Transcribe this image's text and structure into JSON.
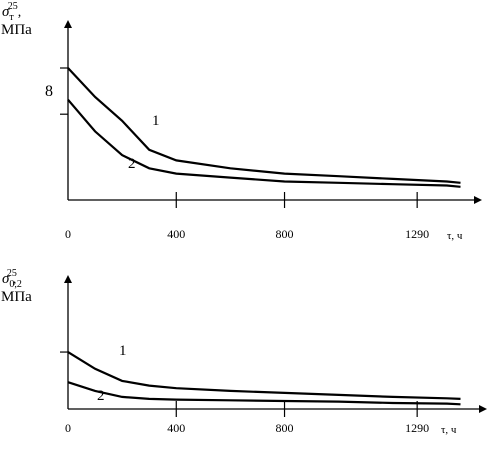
{
  "chart_data": [
    {
      "type": "line",
      "ylabel_symbol": "σ",
      "ylabel_sub": "т",
      "ylabel_sup": "25",
      "ylabel_sep": ",",
      "ylabel_unit": "МПа",
      "xlabel": "τ, ч",
      "xticks": [
        0,
        400,
        800,
        1290
      ],
      "xlim": [
        0,
        1500
      ],
      "ylim": [
        0,
        1
      ],
      "yticks_labeled": [
        {
          "value": 0.65,
          "label": "8"
        }
      ],
      "yticks_unlabeled": [
        1.0
      ],
      "series": [
        {
          "name": "1",
          "x": [
            0,
            100,
            200,
            300,
            400,
            600,
            800,
            1000,
            1200,
            1400,
            1450
          ],
          "y": [
            1.0,
            0.78,
            0.6,
            0.38,
            0.3,
            0.24,
            0.2,
            0.18,
            0.16,
            0.14,
            0.13
          ]
        },
        {
          "name": "2",
          "x": [
            0,
            100,
            200,
            300,
            400,
            600,
            800,
            1000,
            1200,
            1400,
            1450
          ],
          "y": [
            0.76,
            0.52,
            0.34,
            0.24,
            0.2,
            0.17,
            0.14,
            0.13,
            0.12,
            0.11,
            0.1
          ]
        }
      ]
    },
    {
      "type": "line",
      "ylabel_symbol": "σ",
      "ylabel_sub": "0,2",
      "ylabel_sup": "25",
      "ylabel_sep": ",",
      "ylabel_unit": "МПа",
      "xlabel": "τ, ч",
      "xticks": [
        0,
        400,
        800,
        1290
      ],
      "xlim": [
        0,
        1500
      ],
      "ylim": [
        0,
        1
      ],
      "yticks_unlabeled": [
        0.85
      ],
      "series": [
        {
          "name": "1",
          "x": [
            0,
            100,
            200,
            300,
            400,
            600,
            800,
            1000,
            1200,
            1400,
            1450
          ],
          "y": [
            0.85,
            0.6,
            0.42,
            0.35,
            0.31,
            0.27,
            0.24,
            0.21,
            0.18,
            0.16,
            0.15
          ]
        },
        {
          "name": "2",
          "x": [
            0,
            100,
            200,
            300,
            400,
            600,
            800,
            1000,
            1200,
            1400,
            1450
          ],
          "y": [
            0.4,
            0.27,
            0.18,
            0.15,
            0.14,
            0.13,
            0.12,
            0.11,
            0.09,
            0.08,
            0.07
          ]
        }
      ]
    }
  ]
}
